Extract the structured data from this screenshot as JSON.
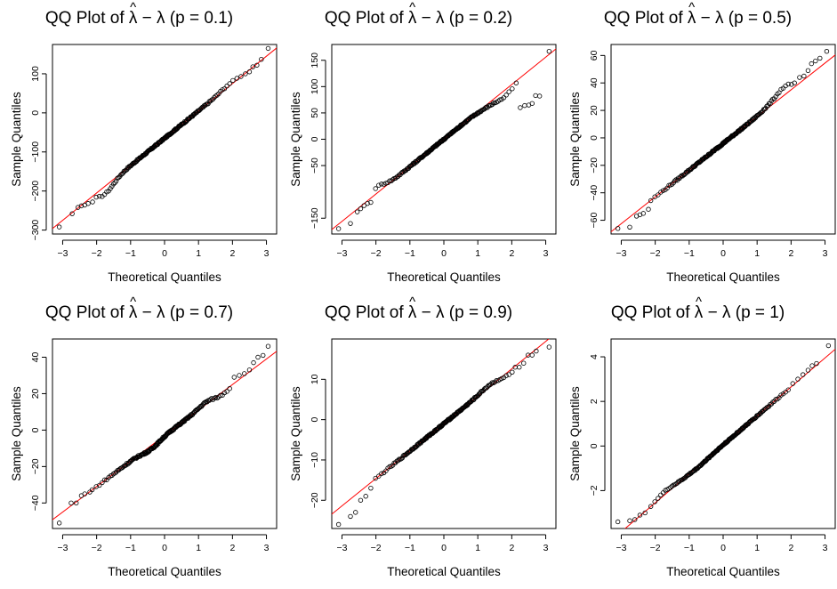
{
  "title_prefix": "QQ Plot of ",
  "x_axis_label": "Theoretical Quantiles",
  "y_axis_label": "Sample Quantiles",
  "point_color": "#000000",
  "line_color": "#ff0000",
  "chart_data": [
    {
      "type": "scatter",
      "title": "QQ Plot of λ̂ − λ (p = 0.1)",
      "p_label": "p = 0.1",
      "xlim": [
        -3.3,
        3.3
      ],
      "ylim": [
        -310,
        175
      ],
      "x_ticks": [
        -3,
        -2,
        -1,
        0,
        1,
        2,
        3
      ],
      "x_tick_labels": [
        "−3",
        "−2",
        "−1",
        "0",
        "1",
        "2",
        "3"
      ],
      "y_ticks": [
        -300,
        -200,
        -100,
        0,
        100
      ],
      "y_tick_labels": [
        "−300",
        "−200",
        "−100",
        "0",
        "100"
      ],
      "line": {
        "intercept": -65,
        "slope": 70
      },
      "extremes": [
        [
          -3.1,
          -292
        ],
        [
          -2.72,
          -258
        ],
        [
          -2.55,
          -242
        ],
        [
          -2.45,
          -238
        ],
        [
          -2.35,
          -236
        ],
        [
          -2.25,
          -232
        ],
        [
          -2.12,
          -228
        ],
        [
          2.25,
          93
        ],
        [
          2.38,
          100
        ],
        [
          2.5,
          105
        ],
        [
          2.6,
          118
        ],
        [
          2.72,
          122
        ],
        [
          2.85,
          137
        ],
        [
          3.05,
          165
        ]
      ],
      "bumps": [
        [
          -1.75,
          -20
        ],
        [
          1.9,
          6
        ]
      ],
      "noise": 2
    },
    {
      "type": "scatter",
      "title": "QQ Plot of λ̂ − λ (p = 0.2)",
      "p_label": "p = 0.2",
      "xlim": [
        -3.3,
        3.3
      ],
      "ylim": [
        -180,
        180
      ],
      "x_ticks": [
        -3,
        -2,
        -1,
        0,
        1,
        2,
        3
      ],
      "x_tick_labels": [
        "−3",
        "−2",
        "−1",
        "0",
        "1",
        "2",
        "3"
      ],
      "y_ticks": [
        -150,
        -50,
        0,
        50,
        100,
        150
      ],
      "y_tick_labels": [
        "−150",
        "−50",
        "0",
        "50",
        "100",
        "150"
      ],
      "line": {
        "intercept": 0,
        "slope": 52
      },
      "extremes": [
        [
          -3.1,
          -170
        ],
        [
          -2.75,
          -160
        ],
        [
          -2.55,
          -138
        ],
        [
          -2.45,
          -132
        ],
        [
          -2.35,
          -126
        ],
        [
          -2.25,
          -122
        ],
        [
          -2.15,
          -120
        ],
        [
          2.25,
          60
        ],
        [
          2.38,
          64
        ],
        [
          2.5,
          65
        ],
        [
          2.6,
          68
        ],
        [
          2.7,
          83
        ],
        [
          2.82,
          82
        ],
        [
          3.1,
          167
        ]
      ],
      "bumps": [
        [
          -2.0,
          12
        ],
        [
          1.8,
          -12
        ],
        [
          1.3,
          -4
        ]
      ],
      "noise": 1.5
    },
    {
      "type": "scatter",
      "title": "QQ Plot of λ̂ − λ (p = 0.5)",
      "p_label": "p = 0.5",
      "xlim": [
        -3.3,
        3.3
      ],
      "ylim": [
        -70,
        68
      ],
      "x_ticks": [
        -3,
        -2,
        -1,
        0,
        1,
        2,
        3
      ],
      "x_tick_labels": [
        "−3",
        "−2",
        "−1",
        "0",
        "1",
        "2",
        "3"
      ],
      "y_ticks": [
        -60,
        -40,
        -20,
        0,
        20,
        40,
        60
      ],
      "y_tick_labels": [
        "−60",
        "−40",
        "−20",
        "0",
        "20",
        "40",
        "60"
      ],
      "line": {
        "intercept": -4,
        "slope": 19.5
      },
      "extremes": [
        [
          -3.1,
          -66
        ],
        [
          -2.75,
          -65
        ],
        [
          -2.55,
          -57
        ],
        [
          -2.45,
          -56
        ],
        [
          -2.35,
          -55
        ],
        [
          -2.2,
          -52
        ],
        [
          2.1,
          40
        ],
        [
          2.25,
          44
        ],
        [
          2.38,
          45
        ],
        [
          2.5,
          49
        ],
        [
          2.6,
          54
        ],
        [
          2.72,
          56
        ],
        [
          2.85,
          58
        ],
        [
          3.05,
          63
        ]
      ],
      "bumps": [
        [
          1.8,
          6
        ],
        [
          1.3,
          1
        ]
      ],
      "noise": 0.6
    },
    {
      "type": "scatter",
      "title": "QQ Plot of λ̂ − λ (p = 0.7)",
      "p_label": "p = 0.7",
      "xlim": [
        -3.3,
        3.3
      ],
      "ylim": [
        -54,
        50
      ],
      "x_ticks": [
        -3,
        -2,
        -1,
        0,
        1,
        2,
        3
      ],
      "x_tick_labels": [
        "−3",
        "−2",
        "−1",
        "0",
        "1",
        "2",
        "3"
      ],
      "y_ticks": [
        -40,
        -20,
        0,
        20,
        40
      ],
      "y_tick_labels": [
        "−40",
        "−20",
        "0",
        "20",
        "40"
      ],
      "line": {
        "intercept": -3,
        "slope": 14
      },
      "extremes": [
        [
          -3.1,
          -51
        ],
        [
          -2.75,
          -40
        ],
        [
          -2.6,
          -40
        ],
        [
          -2.45,
          -36
        ],
        [
          -2.35,
          -35
        ],
        [
          -2.2,
          -34
        ],
        [
          2.05,
          29
        ],
        [
          2.2,
          30
        ],
        [
          2.35,
          31
        ],
        [
          2.5,
          33
        ],
        [
          2.62,
          37
        ],
        [
          2.75,
          40
        ],
        [
          2.9,
          41
        ],
        [
          3.05,
          46
        ]
      ],
      "bumps": [
        [
          -0.4,
          -2
        ],
        [
          1.3,
          2
        ],
        [
          1.6,
          -2
        ]
      ],
      "noise": 0.5
    },
    {
      "type": "scatter",
      "title": "QQ Plot of λ̂ − λ (p = 0.9)",
      "p_label": "p = 0.9",
      "xlim": [
        -3.3,
        3.3
      ],
      "ylim": [
        -27,
        20
      ],
      "x_ticks": [
        -3,
        -2,
        -1,
        0,
        1,
        2,
        3
      ],
      "x_tick_labels": [
        "−3",
        "−2",
        "−1",
        "0",
        "1",
        "2",
        "3"
      ],
      "y_ticks": [
        -20,
        -10,
        0,
        10
      ],
      "y_tick_labels": [
        "−20",
        "−10",
        "0",
        "10"
      ],
      "line": {
        "intercept": -1,
        "slope": 6.8
      },
      "extremes": [
        [
          -3.1,
          -26
        ],
        [
          -2.75,
          -24
        ],
        [
          -2.6,
          -23
        ],
        [
          -2.45,
          -20
        ],
        [
          -2.3,
          -19
        ],
        [
          -2.15,
          -17
        ],
        [
          2.1,
          13
        ],
        [
          2.22,
          13
        ],
        [
          2.35,
          14
        ],
        [
          2.48,
          16
        ],
        [
          2.6,
          16
        ],
        [
          2.72,
          17
        ],
        [
          3.1,
          18
        ]
      ],
      "bumps": [
        [
          2.0,
          -1
        ],
        [
          1.3,
          0.5
        ]
      ],
      "noise": 0.2
    },
    {
      "type": "scatter",
      "title": "QQ Plot of λ̂ − λ (p = 1)",
      "p_label": "p = 1",
      "xlim": [
        -3.3,
        3.3
      ],
      "ylim": [
        -3.7,
        4.8
      ],
      "x_ticks": [
        -3,
        -2,
        -1,
        0,
        1,
        2,
        3
      ],
      "x_tick_labels": [
        "−3",
        "−2",
        "−1",
        "0",
        "1",
        "2",
        "3"
      ],
      "y_ticks": [
        -2,
        0,
        2,
        4
      ],
      "y_tick_labels": [
        "−2",
        "0",
        "2",
        "4"
      ],
      "line": {
        "intercept": 0.05,
        "slope": 1.3
      },
      "extremes": [
        [
          -3.1,
          -3.4
        ],
        [
          -2.75,
          -3.35
        ],
        [
          -2.6,
          -3.3
        ],
        [
          -2.45,
          -3.1
        ],
        [
          -2.3,
          -3.0
        ],
        [
          2.05,
          2.8
        ],
        [
          2.2,
          3.0
        ],
        [
          2.35,
          3.2
        ],
        [
          2.5,
          3.4
        ],
        [
          2.62,
          3.6
        ],
        [
          2.75,
          3.7
        ],
        [
          3.1,
          4.5
        ]
      ],
      "bumps": [
        [
          -1.7,
          0.15
        ],
        [
          -0.7,
          -0.05
        ]
      ],
      "noise": 0.03
    }
  ]
}
